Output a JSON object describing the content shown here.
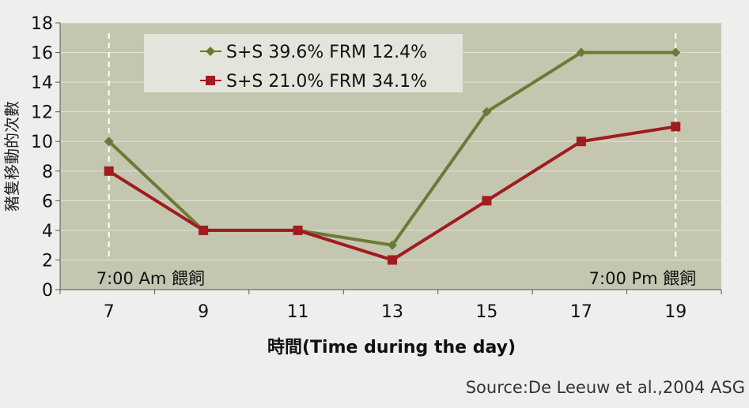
{
  "chart_data": {
    "type": "line",
    "categories": [
      "7",
      "9",
      "11",
      "13",
      "15",
      "17",
      "19"
    ],
    "series": [
      {
        "name": "S+S 39.6%  FRM 12.4%",
        "values": [
          10,
          4,
          4,
          3,
          12,
          16,
          16
        ],
        "color": "#6b7a35",
        "marker": "diamond"
      },
      {
        "name": "S+S 21.0%  FRM 34.1%",
        "values": [
          8,
          4,
          4,
          2,
          6,
          10,
          11
        ],
        "color": "#a01c1e",
        "marker": "square"
      }
    ],
    "xlabel": "時間(Time during the day)",
    "ylabel": "豬隻移動的次數",
    "ylim": [
      0,
      18
    ],
    "yticks": [
      0,
      2,
      4,
      6,
      8,
      10,
      12,
      14,
      16,
      18
    ],
    "grid": true,
    "legend": "top-left",
    "plot_background": "#c4c6b0",
    "annotations": [
      {
        "text": "7:00 Am 餵飼",
        "x": "7"
      },
      {
        "text": "7:00 Pm 餵飼",
        "x": "19"
      }
    ],
    "source": "Source:De Leeuw et al.,2004 ASG"
  }
}
